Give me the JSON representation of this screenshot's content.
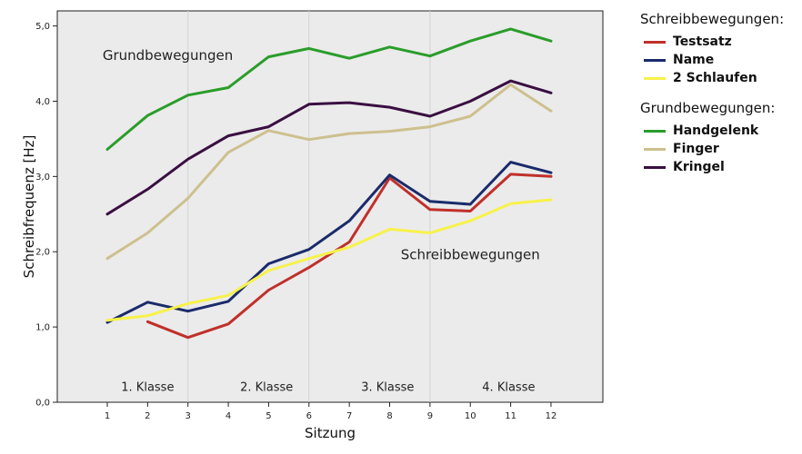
{
  "chart_data": {
    "type": "line",
    "xlabel": "Sitzung",
    "ylabel": "Schreibfrequenz [Hz]",
    "x": [
      1,
      2,
      3,
      4,
      5,
      6,
      7,
      8,
      9,
      10,
      11,
      12
    ],
    "x_tick_labels": [
      "1",
      "2",
      "3",
      "4",
      "5",
      "6",
      "7",
      "8",
      "9",
      "10",
      "11",
      "12"
    ],
    "ylim": [
      0,
      5.2
    ],
    "y_ticks": [
      0,
      1,
      2,
      3,
      4,
      5
    ],
    "y_tick_labels": [
      "0,0",
      "1,0",
      "2,0",
      "3,0",
      "4,0",
      "5,0"
    ],
    "vertical_gridlines_at": [
      3,
      6,
      9
    ],
    "background": "#ebebeb",
    "legend_position": "right",
    "legend_groups": [
      {
        "title": "Schreibbewegungen:",
        "items": [
          {
            "label": "Testsatz",
            "color": "#c0302a"
          },
          {
            "label": "Name",
            "color": "#1a2b6b"
          },
          {
            "label": "2 Schlaufen",
            "color": "#f7f24a"
          }
        ]
      },
      {
        "title": "Grundbewegungen:",
        "items": [
          {
            "label": "Handgelenk",
            "color": "#2a9d2a"
          },
          {
            "label": "Finger",
            "color": "#cdc08e"
          },
          {
            "label": "Kringel",
            "color": "#3a0f42"
          }
        ]
      }
    ],
    "series": [
      {
        "name": "Testsatz",
        "color": "#c0302a",
        "values": [
          null,
          1.07,
          0.86,
          1.04,
          1.49,
          1.79,
          2.13,
          2.98,
          2.56,
          2.54,
          3.03,
          3.0
        ]
      },
      {
        "name": "Name",
        "color": "#1a2b6b",
        "values": [
          1.06,
          1.33,
          1.21,
          1.34,
          1.84,
          2.03,
          2.41,
          3.02,
          2.67,
          2.63,
          3.19,
          3.05
        ]
      },
      {
        "name": "2 Schlaufen",
        "color": "#f7f24a",
        "values": [
          1.09,
          1.15,
          1.31,
          1.42,
          1.75,
          1.91,
          2.06,
          2.3,
          2.25,
          2.41,
          2.64,
          2.69
        ]
      },
      {
        "name": "Handgelenk",
        "color": "#2a9d2a",
        "values": [
          3.36,
          3.81,
          4.08,
          4.18,
          4.59,
          4.7,
          4.57,
          4.72,
          4.6,
          4.8,
          4.96,
          4.8
        ]
      },
      {
        "name": "Finger",
        "color": "#cdc08e",
        "values": [
          1.91,
          2.25,
          2.71,
          3.32,
          3.61,
          3.49,
          3.57,
          3.6,
          3.66,
          3.8,
          4.22,
          3.87
        ]
      },
      {
        "name": "Kringel",
        "color": "#3a0f42",
        "values": [
          2.5,
          2.83,
          3.23,
          3.54,
          3.66,
          3.96,
          3.98,
          3.92,
          3.8,
          4.0,
          4.27,
          4.11
        ]
      }
    ],
    "annotations": [
      {
        "text": "Grundbewegungen",
        "x": 2.5,
        "y": 4.55
      },
      {
        "text": "Schreibbewegungen",
        "x": 10.0,
        "y": 1.9
      }
    ],
    "klasse_labels": [
      {
        "text": "1. Klasse",
        "x": 2.0,
        "y": 0.15
      },
      {
        "text": "2. Klasse",
        "x": 4.95,
        "y": 0.15
      },
      {
        "text": "3. Klasse",
        "x": 7.95,
        "y": 0.15
      },
      {
        "text": "4. Klasse",
        "x": 10.95,
        "y": 0.15
      }
    ]
  }
}
